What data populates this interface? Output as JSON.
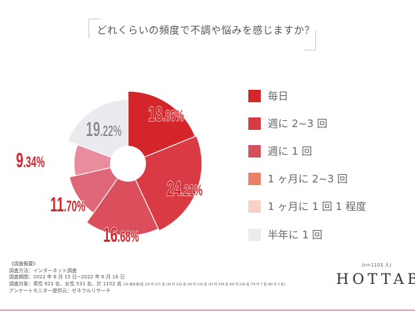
{
  "chart_data": {
    "type": "pie",
    "title": "どれくらいの頻度で不調や悩みを感じますか？",
    "categories": [
      "毎日",
      "週に 2~3 回",
      "週に 1 回",
      "1 ヶ月に 2~3 回",
      "1 ヶ月に 1 回 1 程度",
      "半年に 1 回"
    ],
    "values": [
      18.86,
      24.21,
      16.68,
      11.7,
      9.34,
      19.22
    ],
    "labels": [
      "18.86%",
      "24.21%",
      "16.68%",
      "11.70%",
      "9.34%",
      "19.22%"
    ],
    "slice_colors": [
      "#d4252b",
      "#d93a44",
      "#db4f5d",
      "#de6877",
      "#e98c9d",
      "#e9ebef"
    ],
    "legend_colors": [
      "#d4252b",
      "#d73a42",
      "#d5505b",
      "#e8806a",
      "#f9d0c5",
      "#e9ebef"
    ],
    "label_colors": [
      "#d4252b",
      "#d4252b",
      "#d4252b",
      "#d4252b",
      "#d4252b",
      "#8a8d93"
    ],
    "legend": "right"
  },
  "notes": {
    "heading": "《調査概要》",
    "method": "調査方法：インターネット調査",
    "period": "調査期間：2022 年 6 月 15 日~2022 年 6 月 16 日",
    "target": "調査対象：男性 621 名、女性 531 名、計 1152 名",
    "target_detail": "(20 歳未満2名 /20 代 211 名 /30 代 220 名 /40 代 234 名 /50 代 239 名 /60 代 236 名 /70 代 7 名 /80 代 3 名)",
    "provider": "アンケートモニター提供元：ゼネラルリサーチ"
  },
  "n_label": "(n=1103 人)",
  "logo": "HOTTAB"
}
